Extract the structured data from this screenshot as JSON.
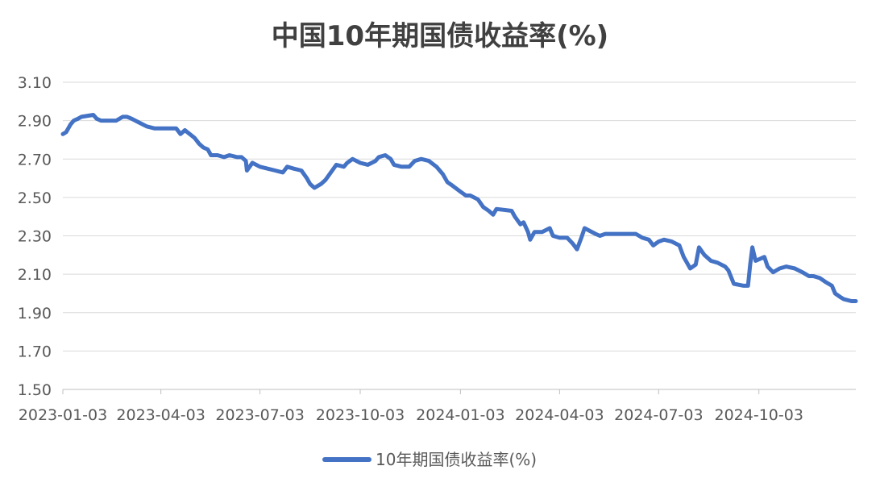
{
  "chart_data": {
    "type": "line",
    "title": "中国10年期国债收益率(%)",
    "xlabel": "",
    "ylabel": "",
    "ylim": [
      1.5,
      3.1
    ],
    "y_ticks": [
      "1.50",
      "1.70",
      "1.90",
      "2.10",
      "2.30",
      "2.50",
      "2.70",
      "2.90",
      "3.10"
    ],
    "x_range": [
      "2023-01-03",
      "2024-12-31"
    ],
    "x_ticks": [
      "2023-01-03",
      "2023-04-03",
      "2023-07-03",
      "2023-10-03",
      "2024-01-03",
      "2024-04-03",
      "2024-07-03",
      "2024-10-03"
    ],
    "grid": "horizontal",
    "legend": "bottom-center",
    "series": [
      {
        "name": "10年期国债收益率(%)",
        "color": "#4472C4",
        "points": [
          [
            "2023-01-03",
            2.83
          ],
          [
            "2023-01-06",
            2.84
          ],
          [
            "2023-01-10",
            2.88
          ],
          [
            "2023-01-13",
            2.9
          ],
          [
            "2023-01-17",
            2.91
          ],
          [
            "2023-01-20",
            2.92
          ],
          [
            "2023-01-31",
            2.93
          ],
          [
            "2023-02-03",
            2.91
          ],
          [
            "2023-02-07",
            2.9
          ],
          [
            "2023-02-14",
            2.9
          ],
          [
            "2023-02-21",
            2.9
          ],
          [
            "2023-02-27",
            2.92
          ],
          [
            "2023-03-03",
            2.92
          ],
          [
            "2023-03-07",
            2.91
          ],
          [
            "2023-03-14",
            2.89
          ],
          [
            "2023-03-21",
            2.87
          ],
          [
            "2023-03-28",
            2.86
          ],
          [
            "2023-04-03",
            2.86
          ],
          [
            "2023-04-10",
            2.86
          ],
          [
            "2023-04-17",
            2.86
          ],
          [
            "2023-04-21",
            2.83
          ],
          [
            "2023-04-25",
            2.85
          ],
          [
            "2023-05-04",
            2.81
          ],
          [
            "2023-05-08",
            2.78
          ],
          [
            "2023-05-12",
            2.76
          ],
          [
            "2023-05-16",
            2.75
          ],
          [
            "2023-05-19",
            2.72
          ],
          [
            "2023-05-25",
            2.72
          ],
          [
            "2023-05-31",
            2.71
          ],
          [
            "2023-06-05",
            2.72
          ],
          [
            "2023-06-12",
            2.71
          ],
          [
            "2023-06-16",
            2.71
          ],
          [
            "2023-06-20",
            2.69
          ],
          [
            "2023-06-21",
            2.64
          ],
          [
            "2023-06-26",
            2.68
          ],
          [
            "2023-07-03",
            2.66
          ],
          [
            "2023-07-10",
            2.65
          ],
          [
            "2023-07-17",
            2.64
          ],
          [
            "2023-07-24",
            2.63
          ],
          [
            "2023-07-28",
            2.66
          ],
          [
            "2023-08-03",
            2.65
          ],
          [
            "2023-08-10",
            2.64
          ],
          [
            "2023-08-15",
            2.6
          ],
          [
            "2023-08-18",
            2.57
          ],
          [
            "2023-08-22",
            2.55
          ],
          [
            "2023-08-28",
            2.57
          ],
          [
            "2023-09-01",
            2.59
          ],
          [
            "2023-09-06",
            2.63
          ],
          [
            "2023-09-11",
            2.67
          ],
          [
            "2023-09-18",
            2.66
          ],
          [
            "2023-09-21",
            2.68
          ],
          [
            "2023-09-26",
            2.7
          ],
          [
            "2023-10-03",
            2.68
          ],
          [
            "2023-10-10",
            2.67
          ],
          [
            "2023-10-17",
            2.69
          ],
          [
            "2023-10-20",
            2.71
          ],
          [
            "2023-10-26",
            2.72
          ],
          [
            "2023-10-31",
            2.7
          ],
          [
            "2023-11-03",
            2.67
          ],
          [
            "2023-11-10",
            2.66
          ],
          [
            "2023-11-17",
            2.66
          ],
          [
            "2023-11-22",
            2.69
          ],
          [
            "2023-11-28",
            2.7
          ],
          [
            "2023-12-05",
            2.69
          ],
          [
            "2023-12-12",
            2.66
          ],
          [
            "2023-12-18",
            2.62
          ],
          [
            "2023-12-22",
            2.58
          ],
          [
            "2023-12-27",
            2.56
          ],
          [
            "2024-01-03",
            2.53
          ],
          [
            "2024-01-08",
            2.51
          ],
          [
            "2024-01-12",
            2.51
          ],
          [
            "2024-01-19",
            2.49
          ],
          [
            "2024-01-24",
            2.45
          ],
          [
            "2024-01-29",
            2.43
          ],
          [
            "2024-02-02",
            2.41
          ],
          [
            "2024-02-05",
            2.44
          ],
          [
            "2024-02-19",
            2.43
          ],
          [
            "2024-02-22",
            2.4
          ],
          [
            "2024-02-27",
            2.36
          ],
          [
            "2024-03-01",
            2.37
          ],
          [
            "2024-03-05",
            2.32
          ],
          [
            "2024-03-07",
            2.28
          ],
          [
            "2024-03-11",
            2.32
          ],
          [
            "2024-03-18",
            2.32
          ],
          [
            "2024-03-25",
            2.34
          ],
          [
            "2024-03-28",
            2.3
          ],
          [
            "2024-04-03",
            2.29
          ],
          [
            "2024-04-10",
            2.29
          ],
          [
            "2024-04-15",
            2.26
          ],
          [
            "2024-04-19",
            2.23
          ],
          [
            "2024-04-23",
            2.29
          ],
          [
            "2024-04-26",
            2.34
          ],
          [
            "2024-05-06",
            2.31
          ],
          [
            "2024-05-10",
            2.3
          ],
          [
            "2024-05-15",
            2.31
          ],
          [
            "2024-05-22",
            2.31
          ],
          [
            "2024-05-29",
            2.31
          ],
          [
            "2024-06-05",
            2.31
          ],
          [
            "2024-06-12",
            2.31
          ],
          [
            "2024-06-18",
            2.29
          ],
          [
            "2024-06-24",
            2.28
          ],
          [
            "2024-06-28",
            2.25
          ],
          [
            "2024-07-03",
            2.27
          ],
          [
            "2024-07-08",
            2.28
          ],
          [
            "2024-07-15",
            2.27
          ],
          [
            "2024-07-22",
            2.25
          ],
          [
            "2024-07-26",
            2.19
          ],
          [
            "2024-08-01",
            2.13
          ],
          [
            "2024-08-06",
            2.15
          ],
          [
            "2024-08-09",
            2.24
          ],
          [
            "2024-08-14",
            2.2
          ],
          [
            "2024-08-20",
            2.17
          ],
          [
            "2024-08-26",
            2.16
          ],
          [
            "2024-09-02",
            2.14
          ],
          [
            "2024-09-05",
            2.12
          ],
          [
            "2024-09-10",
            2.05
          ],
          [
            "2024-09-19",
            2.04
          ],
          [
            "2024-09-23",
            2.04
          ],
          [
            "2024-09-25",
            2.15
          ],
          [
            "2024-09-27",
            2.24
          ],
          [
            "2024-09-30",
            2.17
          ],
          [
            "2024-10-08",
            2.19
          ],
          [
            "2024-10-11",
            2.14
          ],
          [
            "2024-10-16",
            2.11
          ],
          [
            "2024-10-22",
            2.13
          ],
          [
            "2024-10-28",
            2.14
          ],
          [
            "2024-11-05",
            2.13
          ],
          [
            "2024-11-12",
            2.11
          ],
          [
            "2024-11-18",
            2.09
          ],
          [
            "2024-11-22",
            2.09
          ],
          [
            "2024-11-28",
            2.08
          ],
          [
            "2024-12-03",
            2.06
          ],
          [
            "2024-12-09",
            2.04
          ],
          [
            "2024-12-12",
            2.0
          ],
          [
            "2024-12-17",
            1.98
          ],
          [
            "2024-12-20",
            1.97
          ],
          [
            "2024-12-27",
            1.96
          ],
          [
            "2024-12-31",
            1.96
          ]
        ]
      }
    ]
  }
}
